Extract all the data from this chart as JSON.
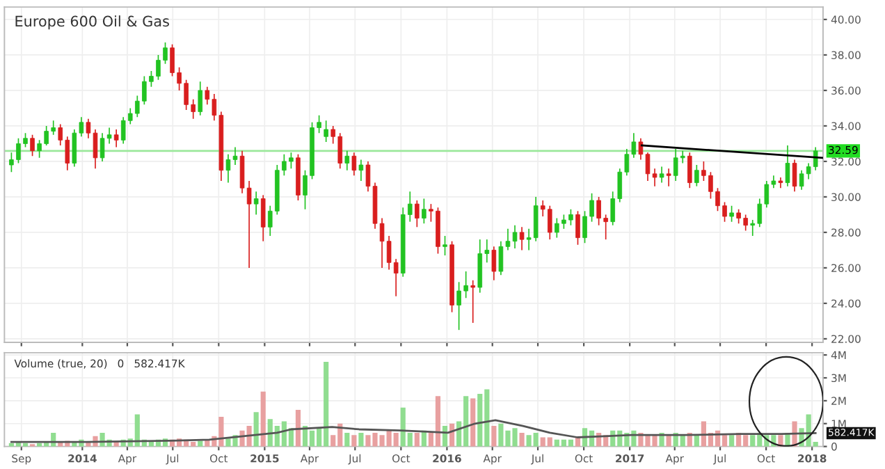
{
  "chart_data": [
    {
      "type": "candlestick",
      "title": "Europe 600 Oil & Gas",
      "tick_labels": "y",
      "grid": true,
      "x": [
        "2013-08-12",
        "2013-08-26",
        "2013-09-09",
        "2013-09-23",
        "2013-10-07",
        "2013-10-21",
        "2013-11-04",
        "2013-11-18",
        "2013-12-02",
        "2013-12-16",
        "2013-12-30",
        "2014-01-13",
        "2014-01-27",
        "2014-02-10",
        "2014-02-24",
        "2014-03-10",
        "2014-03-24",
        "2014-04-07",
        "2014-04-21",
        "2014-05-05",
        "2014-05-19",
        "2014-06-02",
        "2014-06-16",
        "2014-06-30",
        "2014-07-14",
        "2014-07-28",
        "2014-08-11",
        "2014-08-25",
        "2014-09-08",
        "2014-09-22",
        "2014-10-06",
        "2014-10-20",
        "2014-11-03",
        "2014-11-17",
        "2014-12-01",
        "2014-12-15",
        "2014-12-29",
        "2015-01-12",
        "2015-01-26",
        "2015-02-09",
        "2015-02-23",
        "2015-03-09",
        "2015-03-23",
        "2015-04-06",
        "2015-04-20",
        "2015-05-04",
        "2015-05-18",
        "2015-06-01",
        "2015-06-15",
        "2015-06-29",
        "2015-07-13",
        "2015-07-27",
        "2015-08-10",
        "2015-08-24",
        "2015-09-07",
        "2015-09-21",
        "2015-10-05",
        "2015-10-19",
        "2015-11-02",
        "2015-11-16",
        "2015-11-30",
        "2015-12-14",
        "2015-12-28",
        "2016-01-11",
        "2016-01-25",
        "2016-02-08",
        "2016-02-22",
        "2016-03-07",
        "2016-03-21",
        "2016-04-04",
        "2016-04-18",
        "2016-05-02",
        "2016-05-16",
        "2016-05-30",
        "2016-06-13",
        "2016-06-27",
        "2016-07-11",
        "2016-07-25",
        "2016-08-08",
        "2016-08-22",
        "2016-09-05",
        "2016-09-19",
        "2016-10-03",
        "2016-10-17",
        "2016-10-31",
        "2016-11-14",
        "2016-11-28",
        "2016-12-12",
        "2016-12-26",
        "2017-01-09",
        "2017-01-23",
        "2017-02-06",
        "2017-02-20",
        "2017-03-06",
        "2017-03-20",
        "2017-04-03",
        "2017-04-17",
        "2017-05-01",
        "2017-05-15",
        "2017-05-29",
        "2017-06-12",
        "2017-06-26",
        "2017-07-10",
        "2017-07-24",
        "2017-08-07",
        "2017-08-21",
        "2017-09-04",
        "2017-09-18",
        "2017-10-02",
        "2017-10-16",
        "2017-10-30",
        "2017-11-13",
        "2017-11-27",
        "2017-12-11",
        "2017-12-25",
        "2018-01-08"
      ],
      "ohlc": [
        [
          31.8,
          32.5,
          31.4,
          32.1
        ],
        [
          32.1,
          33.3,
          31.9,
          33.0
        ],
        [
          33.0,
          33.6,
          32.8,
          33.3
        ],
        [
          33.3,
          33.5,
          32.3,
          32.6
        ],
        [
          32.6,
          33.2,
          32.2,
          33.0
        ],
        [
          33.0,
          34.0,
          32.9,
          33.7
        ],
        [
          33.7,
          34.3,
          33.5,
          33.9
        ],
        [
          33.9,
          34.1,
          32.9,
          33.2
        ],
        [
          33.2,
          33.4,
          31.5,
          31.9
        ],
        [
          31.9,
          33.8,
          31.7,
          33.6
        ],
        [
          33.6,
          34.5,
          33.4,
          34.2
        ],
        [
          34.2,
          34.4,
          33.3,
          33.6
        ],
        [
          33.6,
          33.8,
          31.6,
          32.2
        ],
        [
          32.2,
          33.6,
          32.0,
          33.3
        ],
        [
          33.3,
          33.9,
          33.0,
          33.5
        ],
        [
          33.5,
          33.8,
          32.8,
          33.2
        ],
        [
          33.2,
          34.5,
          33.0,
          34.3
        ],
        [
          34.3,
          35.0,
          34.1,
          34.7
        ],
        [
          34.7,
          35.7,
          34.5,
          35.4
        ],
        [
          35.4,
          36.8,
          35.2,
          36.5
        ],
        [
          36.5,
          37.1,
          36.2,
          36.8
        ],
        [
          36.8,
          38.0,
          36.6,
          37.7
        ],
        [
          37.7,
          38.7,
          37.5,
          38.4
        ],
        [
          38.4,
          38.6,
          36.8,
          37.0
        ],
        [
          37.0,
          37.3,
          36.0,
          36.4
        ],
        [
          36.4,
          36.6,
          34.9,
          35.2
        ],
        [
          35.2,
          35.5,
          34.4,
          34.8
        ],
        [
          34.8,
          36.5,
          34.6,
          36.0
        ],
        [
          36.0,
          36.2,
          35.2,
          35.5
        ],
        [
          35.5,
          35.8,
          34.3,
          34.6
        ],
        [
          34.6,
          34.8,
          30.9,
          31.5
        ],
        [
          31.5,
          32.4,
          30.8,
          32.1
        ],
        [
          32.1,
          32.8,
          31.8,
          32.3
        ],
        [
          32.3,
          32.6,
          30.2,
          30.5
        ],
        [
          30.5,
          30.9,
          26.0,
          29.6
        ],
        [
          29.6,
          30.3,
          29.0,
          29.9
        ],
        [
          29.9,
          30.1,
          27.5,
          28.3
        ],
        [
          28.3,
          29.5,
          27.8,
          29.2
        ],
        [
          29.2,
          31.8,
          29.0,
          31.5
        ],
        [
          31.5,
          32.4,
          31.2,
          32.0
        ],
        [
          32.0,
          32.5,
          31.6,
          32.2
        ],
        [
          32.2,
          32.4,
          29.8,
          30.1
        ],
        [
          30.1,
          31.5,
          29.3,
          31.2
        ],
        [
          31.2,
          34.2,
          31.0,
          33.9
        ],
        [
          33.9,
          34.6,
          33.6,
          34.2
        ],
        [
          33.4,
          34.3,
          33.1,
          33.8
        ],
        [
          33.8,
          34.0,
          33.0,
          33.4
        ],
        [
          33.4,
          33.6,
          31.6,
          31.9
        ],
        [
          31.9,
          32.6,
          31.5,
          32.3
        ],
        [
          32.3,
          32.5,
          31.2,
          31.5
        ],
        [
          31.5,
          32.1,
          30.9,
          31.8
        ],
        [
          31.8,
          32.0,
          30.3,
          30.6
        ],
        [
          30.6,
          30.8,
          28.2,
          28.5
        ],
        [
          28.5,
          28.8,
          26.0,
          27.5
        ],
        [
          27.5,
          27.8,
          25.9,
          26.3
        ],
        [
          26.3,
          26.5,
          24.4,
          25.7
        ],
        [
          25.7,
          29.4,
          25.5,
          29.0
        ],
        [
          29.0,
          30.3,
          28.6,
          29.6
        ],
        [
          29.6,
          29.8,
          28.3,
          28.8
        ],
        [
          28.8,
          29.9,
          28.5,
          29.3
        ],
        [
          29.3,
          29.6,
          28.6,
          29.2
        ],
        [
          29.2,
          29.4,
          26.8,
          27.2
        ],
        [
          27.2,
          27.8,
          26.7,
          27.3
        ],
        [
          27.3,
          27.5,
          23.5,
          23.9
        ],
        [
          23.9,
          25.2,
          22.5,
          24.7
        ],
        [
          24.7,
          25.8,
          24.3,
          25.0
        ],
        [
          25.0,
          25.3,
          22.9,
          24.9
        ],
        [
          24.9,
          27.6,
          24.6,
          26.8
        ],
        [
          26.8,
          27.6,
          26.3,
          27.0
        ],
        [
          27.0,
          27.2,
          25.3,
          25.8
        ],
        [
          25.8,
          27.5,
          25.6,
          27.2
        ],
        [
          27.2,
          28.2,
          27.0,
          27.5
        ],
        [
          27.5,
          28.4,
          27.1,
          28.0
        ],
        [
          28.0,
          28.3,
          27.0,
          27.6
        ],
        [
          27.6,
          28.2,
          27.0,
          27.7
        ],
        [
          27.7,
          30.0,
          27.5,
          29.5
        ],
        [
          29.5,
          29.8,
          28.9,
          29.3
        ],
        [
          29.3,
          29.5,
          27.6,
          28.0
        ],
        [
          28.0,
          28.8,
          27.7,
          28.5
        ],
        [
          28.5,
          29.0,
          28.2,
          28.7
        ],
        [
          28.7,
          29.3,
          28.4,
          29.0
        ],
        [
          29.0,
          29.2,
          27.3,
          27.7
        ],
        [
          27.7,
          29.2,
          27.4,
          28.9
        ],
        [
          28.9,
          30.2,
          28.6,
          29.8
        ],
        [
          29.8,
          30.0,
          28.4,
          28.8
        ],
        [
          28.8,
          29.0,
          27.6,
          28.6
        ],
        [
          28.6,
          30.3,
          28.4,
          29.9
        ],
        [
          29.9,
          31.6,
          29.7,
          31.4
        ],
        [
          31.4,
          32.7,
          31.2,
          32.4
        ],
        [
          32.4,
          33.6,
          32.2,
          33.1
        ],
        [
          33.1,
          33.3,
          32.1,
          32.4
        ],
        [
          32.4,
          32.5,
          30.9,
          31.3
        ],
        [
          31.3,
          31.6,
          30.6,
          31.1
        ],
        [
          31.1,
          31.7,
          30.8,
          31.3
        ],
        [
          31.3,
          31.6,
          30.6,
          31.2
        ],
        [
          31.2,
          32.7,
          30.9,
          32.2
        ],
        [
          32.2,
          32.6,
          31.9,
          32.3
        ],
        [
          32.3,
          32.5,
          30.5,
          30.8
        ],
        [
          30.8,
          31.8,
          30.6,
          31.5
        ],
        [
          31.5,
          32.0,
          30.9,
          31.2
        ],
        [
          31.2,
          31.4,
          29.9,
          30.3
        ],
        [
          30.3,
          30.5,
          29.2,
          29.5
        ],
        [
          29.5,
          29.7,
          28.6,
          28.9
        ],
        [
          28.9,
          29.5,
          28.6,
          29.1
        ],
        [
          29.1,
          29.3,
          28.5,
          28.8
        ],
        [
          28.8,
          29.0,
          28.1,
          28.4
        ],
        [
          28.4,
          28.7,
          27.8,
          28.5
        ],
        [
          28.5,
          29.9,
          28.3,
          29.6
        ],
        [
          29.6,
          30.9,
          29.4,
          30.7
        ],
        [
          30.7,
          31.2,
          30.5,
          30.9
        ],
        [
          30.9,
          31.1,
          30.5,
          30.8
        ],
        [
          30.8,
          32.9,
          30.6,
          31.9
        ],
        [
          31.9,
          32.1,
          30.3,
          30.6
        ],
        [
          30.6,
          31.5,
          30.4,
          31.3
        ],
        [
          31.3,
          31.9,
          31.0,
          31.7
        ],
        [
          31.7,
          32.8,
          31.5,
          32.59
        ]
      ],
      "colors": [
        "#22c322",
        "#22c322",
        "#22c322",
        "#d91e1e",
        "#22c322",
        "#22c322",
        "#22c322",
        "#d91e1e",
        "#d91e1e",
        "#22c322",
        "#22c322",
        "#d91e1e",
        "#d91e1e",
        "#22c322",
        "#22c322",
        "#d91e1e",
        "#22c322",
        "#22c322",
        "#22c322",
        "#22c322",
        "#22c322",
        "#22c322",
        "#22c322",
        "#d91e1e",
        "#d91e1e",
        "#d91e1e",
        "#d91e1e",
        "#22c322",
        "#d91e1e",
        "#d91e1e",
        "#d91e1e",
        "#22c322",
        "#22c322",
        "#d91e1e",
        "#d91e1e",
        "#22c322",
        "#d91e1e",
        "#22c322",
        "#22c322",
        "#22c322",
        "#22c322",
        "#d91e1e",
        "#22c322",
        "#22c322",
        "#22c322",
        "#22c322",
        "#d91e1e",
        "#d91e1e",
        "#22c322",
        "#d91e1e",
        "#22c322",
        "#d91e1e",
        "#d91e1e",
        "#d91e1e",
        "#d91e1e",
        "#d91e1e",
        "#22c322",
        "#22c322",
        "#d91e1e",
        "#22c322",
        "#d91e1e",
        "#d91e1e",
        "#22c322",
        "#d91e1e",
        "#22c322",
        "#22c322",
        "#d91e1e",
        "#22c322",
        "#22c322",
        "#d91e1e",
        "#22c322",
        "#22c322",
        "#22c322",
        "#d91e1e",
        "#22c322",
        "#22c322",
        "#d91e1e",
        "#d91e1e",
        "#22c322",
        "#22c322",
        "#22c322",
        "#d91e1e",
        "#22c322",
        "#22c322",
        "#d91e1e",
        "#d91e1e",
        "#22c322",
        "#22c322",
        "#22c322",
        "#22c322",
        "#d91e1e",
        "#d91e1e",
        "#d91e1e",
        "#22c322",
        "#d91e1e",
        "#22c322",
        "#22c322",
        "#d91e1e",
        "#22c322",
        "#d91e1e",
        "#d91e1e",
        "#d91e1e",
        "#d91e1e",
        "#22c322",
        "#d91e1e",
        "#d91e1e",
        "#22c322",
        "#22c322",
        "#22c322",
        "#22c322",
        "#d91e1e",
        "#22c322",
        "#d91e1e",
        "#22c322",
        "#22c322",
        "#22c322"
      ],
      "series": [
        {
          "type": "line",
          "x": [
            "2017-01-25",
            "2018-01-23"
          ],
          "values": [
            32.9,
            32.2
          ],
          "color": "#000000"
        }
      ],
      "ref_lines": [
        {
          "axis": "y",
          "value": 32.59,
          "label": "32.59",
          "color": "#9be89b"
        }
      ],
      "xlim": [
        "2013-07-29",
        "2018-01-23"
      ],
      "xticks": [
        {
          "value": "2013-09-01",
          "label": null
        },
        {
          "value": "2014-01-01",
          "label": null
        },
        {
          "value": "2014-04-01",
          "label": null
        },
        {
          "value": "2014-07-01",
          "label": null
        },
        {
          "value": "2014-10-01",
          "label": null
        },
        {
          "value": "2015-01-01",
          "label": null
        },
        {
          "value": "2015-04-01",
          "label": null
        },
        {
          "value": "2015-07-01",
          "label": null
        },
        {
          "value": "2015-10-01",
          "label": null
        },
        {
          "value": "2016-01-01",
          "label": null
        },
        {
          "value": "2016-04-01",
          "label": null
        },
        {
          "value": "2016-07-01",
          "label": null
        },
        {
          "value": "2016-10-01",
          "label": null
        },
        {
          "value": "2017-01-01",
          "label": null
        },
        {
          "value": "2017-04-01",
          "label": null
        },
        {
          "value": "2017-07-01",
          "label": null
        },
        {
          "value": "2017-10-01",
          "label": null
        },
        {
          "value": "2018-01-01",
          "label": null
        }
      ],
      "ylim": [
        21.8,
        40.7
      ],
      "yticks": [
        {
          "value": 22,
          "label": "22.00"
        },
        {
          "value": 24,
          "label": "24.00"
        },
        {
          "value": 26,
          "label": "26.00"
        },
        {
          "value": 28,
          "label": "28.00"
        },
        {
          "value": 30,
          "label": "30.00"
        },
        {
          "value": 32,
          "label": "32.00"
        },
        {
          "value": 34,
          "label": "34.00"
        },
        {
          "value": 36,
          "label": "36.00"
        },
        {
          "value": 38,
          "label": "38.00"
        },
        {
          "value": 40,
          "label": "40.00"
        }
      ]
    },
    {
      "type": "bar",
      "grid": true,
      "x": [
        "2013-08-12",
        "2013-08-26",
        "2013-09-09",
        "2013-09-23",
        "2013-10-07",
        "2013-10-21",
        "2013-11-04",
        "2013-11-18",
        "2013-12-02",
        "2013-12-16",
        "2013-12-30",
        "2014-01-13",
        "2014-01-27",
        "2014-02-10",
        "2014-02-24",
        "2014-03-10",
        "2014-03-24",
        "2014-04-07",
        "2014-04-21",
        "2014-05-05",
        "2014-05-19",
        "2014-06-02",
        "2014-06-16",
        "2014-06-30",
        "2014-07-14",
        "2014-07-28",
        "2014-08-11",
        "2014-08-25",
        "2014-09-08",
        "2014-09-22",
        "2014-10-06",
        "2014-10-20",
        "2014-11-03",
        "2014-11-17",
        "2014-12-01",
        "2014-12-15",
        "2014-12-29",
        "2015-01-12",
        "2015-01-26",
        "2015-02-09",
        "2015-02-23",
        "2015-03-09",
        "2015-03-23",
        "2015-04-06",
        "2015-04-20",
        "2015-05-04",
        "2015-05-18",
        "2015-06-01",
        "2015-06-15",
        "2015-06-29",
        "2015-07-13",
        "2015-07-27",
        "2015-08-10",
        "2015-08-24",
        "2015-09-07",
        "2015-09-21",
        "2015-10-05",
        "2015-10-19",
        "2015-11-02",
        "2015-11-16",
        "2015-11-30",
        "2015-12-14",
        "2015-12-28",
        "2016-01-11",
        "2016-01-25",
        "2016-02-08",
        "2016-02-22",
        "2016-03-07",
        "2016-03-21",
        "2016-04-04",
        "2016-04-18",
        "2016-05-02",
        "2016-05-16",
        "2016-05-30",
        "2016-06-13",
        "2016-06-27",
        "2016-07-11",
        "2016-07-25",
        "2016-08-08",
        "2016-08-22",
        "2016-09-05",
        "2016-09-19",
        "2016-10-03",
        "2016-10-17",
        "2016-10-31",
        "2016-11-14",
        "2016-11-28",
        "2016-12-12",
        "2016-12-26",
        "2017-01-09",
        "2017-01-23",
        "2017-02-06",
        "2017-02-20",
        "2017-03-06",
        "2017-03-20",
        "2017-04-03",
        "2017-04-17",
        "2017-05-01",
        "2017-05-15",
        "2017-05-29",
        "2017-06-12",
        "2017-06-26",
        "2017-07-10",
        "2017-07-24",
        "2017-08-07",
        "2017-08-21",
        "2017-09-04",
        "2017-09-18",
        "2017-10-02",
        "2017-10-16",
        "2017-10-30",
        "2017-11-13",
        "2017-11-27",
        "2017-12-11",
        "2017-12-25",
        "2018-01-08"
      ],
      "series": [
        {
          "values": [
            150000,
            200000,
            150000,
            100000,
            150000,
            200000,
            600000,
            200000,
            250000,
            200000,
            300000,
            200000,
            450000,
            600000,
            300000,
            200000,
            300000,
            350000,
            1400000,
            300000,
            250000,
            300000,
            350000,
            300000,
            350000,
            300000,
            200000,
            250000,
            300000,
            450000,
            1300000,
            350000,
            500000,
            700000,
            900000,
            1500000,
            2400000,
            1200000,
            900000,
            1100000,
            800000,
            1600000,
            900000,
            700000,
            800000,
            3700000,
            500000,
            1000000,
            600000,
            500000,
            600000,
            500000,
            600000,
            500000,
            700000,
            600000,
            1700000,
            600000,
            600000,
            700000,
            600000,
            2200000,
            900000,
            1000000,
            1100000,
            2200000,
            2100000,
            2300000,
            2500000,
            900000,
            1000000,
            700000,
            800000,
            600000,
            500000,
            600000,
            400000,
            400000,
            300000,
            300000,
            300000,
            400000,
            800000,
            700000,
            600000,
            500000,
            700000,
            700000,
            600000,
            700000,
            600000,
            500000,
            500000,
            600000,
            500000,
            600000,
            500000,
            600000,
            500000,
            1100000,
            600000,
            700000,
            500000,
            500000,
            600000,
            500000,
            500000,
            600000,
            500000,
            500000,
            500000,
            600000,
            1100000,
            800000,
            1400000,
            200000
          ],
          "colors": [
            "#90dd90",
            "#90dd90",
            "#90dd90",
            "#e8a0a0",
            "#90dd90",
            "#90dd90",
            "#90dd90",
            "#e8a0a0",
            "#e8a0a0",
            "#90dd90",
            "#90dd90",
            "#e8a0a0",
            "#e8a0a0",
            "#90dd90",
            "#90dd90",
            "#e8a0a0",
            "#90dd90",
            "#90dd90",
            "#90dd90",
            "#90dd90",
            "#90dd90",
            "#90dd90",
            "#90dd90",
            "#e8a0a0",
            "#e8a0a0",
            "#e8a0a0",
            "#e8a0a0",
            "#90dd90",
            "#e8a0a0",
            "#e8a0a0",
            "#e8a0a0",
            "#90dd90",
            "#90dd90",
            "#e8a0a0",
            "#e8a0a0",
            "#90dd90",
            "#e8a0a0",
            "#90dd90",
            "#90dd90",
            "#90dd90",
            "#90dd90",
            "#e8a0a0",
            "#90dd90",
            "#90dd90",
            "#90dd90",
            "#90dd90",
            "#e8a0a0",
            "#e8a0a0",
            "#90dd90",
            "#e8a0a0",
            "#90dd90",
            "#e8a0a0",
            "#e8a0a0",
            "#e8a0a0",
            "#e8a0a0",
            "#e8a0a0",
            "#90dd90",
            "#90dd90",
            "#e8a0a0",
            "#90dd90",
            "#e8a0a0",
            "#e8a0a0",
            "#90dd90",
            "#e8a0a0",
            "#90dd90",
            "#90dd90",
            "#e8a0a0",
            "#90dd90",
            "#90dd90",
            "#e8a0a0",
            "#90dd90",
            "#90dd90",
            "#90dd90",
            "#e8a0a0",
            "#90dd90",
            "#90dd90",
            "#e8a0a0",
            "#e8a0a0",
            "#90dd90",
            "#90dd90",
            "#90dd90",
            "#e8a0a0",
            "#90dd90",
            "#90dd90",
            "#e8a0a0",
            "#e8a0a0",
            "#90dd90",
            "#90dd90",
            "#90dd90",
            "#90dd90",
            "#e8a0a0",
            "#e8a0a0",
            "#e8a0a0",
            "#90dd90",
            "#e8a0a0",
            "#90dd90",
            "#90dd90",
            "#e8a0a0",
            "#90dd90",
            "#e8a0a0",
            "#e8a0a0",
            "#e8a0a0",
            "#e8a0a0",
            "#90dd90",
            "#e8a0a0",
            "#e8a0a0",
            "#90dd90",
            "#90dd90",
            "#90dd90",
            "#90dd90",
            "#e8a0a0",
            "#90dd90",
            "#e8a0a0",
            "#90dd90",
            "#90dd90",
            "#90dd90"
          ]
        },
        {
          "type": "line",
          "color": "#555555",
          "x": [
            "2013-08-12",
            "2014-01-09",
            "2014-06-22",
            "2014-09-12",
            "2014-11-19",
            "2015-01-26",
            "2015-02-23",
            "2015-05-16",
            "2015-07-09",
            "2015-09-29",
            "2015-11-23",
            "2016-01-03",
            "2016-02-26",
            "2016-04-07",
            "2016-06-01",
            "2016-07-25",
            "2016-09-18",
            "2016-11-12",
            "2017-01-05",
            "2017-04-24",
            "2017-08-12",
            "2017-11-01",
            "2018-01-08"
          ],
          "values": [
            200000,
            200000,
            250000,
            300000,
            450000,
            600000,
            750000,
            850000,
            750000,
            700000,
            650000,
            600000,
            1000000,
            1150000,
            900000,
            600000,
            400000,
            450000,
            500000,
            500000,
            550000,
            550000,
            582417
          ],
          "value_labels": [
            null,
            null,
            null,
            null,
            null,
            null,
            null,
            null,
            null,
            null,
            null,
            null,
            null,
            null,
            null,
            null,
            null,
            null,
            null,
            null,
            null,
            null,
            "582.417K"
          ]
        }
      ],
      "annotations": [
        "Volume (true, 20)",
        "0",
        "582.417K"
      ],
      "xlim": [
        "2013-07-29",
        "2018-01-23"
      ],
      "xticks": [
        {
          "value": "2013-09-01",
          "label": "Sep"
        },
        {
          "value": "2014-01-01",
          "label": "2014"
        },
        {
          "value": "2014-04-01",
          "label": "Apr"
        },
        {
          "value": "2014-07-01",
          "label": "Jul"
        },
        {
          "value": "2014-10-01",
          "label": "Oct"
        },
        {
          "value": "2015-01-01",
          "label": "2015"
        },
        {
          "value": "2015-04-01",
          "label": "Apr"
        },
        {
          "value": "2015-07-01",
          "label": "Jul"
        },
        {
          "value": "2015-10-01",
          "label": "Oct"
        },
        {
          "value": "2016-01-01",
          "label": "2016"
        },
        {
          "value": "2016-04-01",
          "label": "Apr"
        },
        {
          "value": "2016-07-01",
          "label": "Jul"
        },
        {
          "value": "2016-10-01",
          "label": "Oct"
        },
        {
          "value": "2017-01-01",
          "label": "2017"
        },
        {
          "value": "2017-04-01",
          "label": "Apr"
        },
        {
          "value": "2017-07-01",
          "label": "Jul"
        },
        {
          "value": "2017-10-01",
          "label": "Oct"
        },
        {
          "value": "2018-01-01",
          "label": "2018"
        }
      ],
      "ylim": [
        0,
        4100000
      ],
      "yticks": [
        0,
        {
          "value": 1000000,
          "label": "1M"
        },
        {
          "value": 2000000,
          "label": "2M"
        },
        {
          "value": 3000000,
          "label": "3M"
        },
        {
          "value": 4000000,
          "label": "4M"
        }
      ]
    }
  ]
}
